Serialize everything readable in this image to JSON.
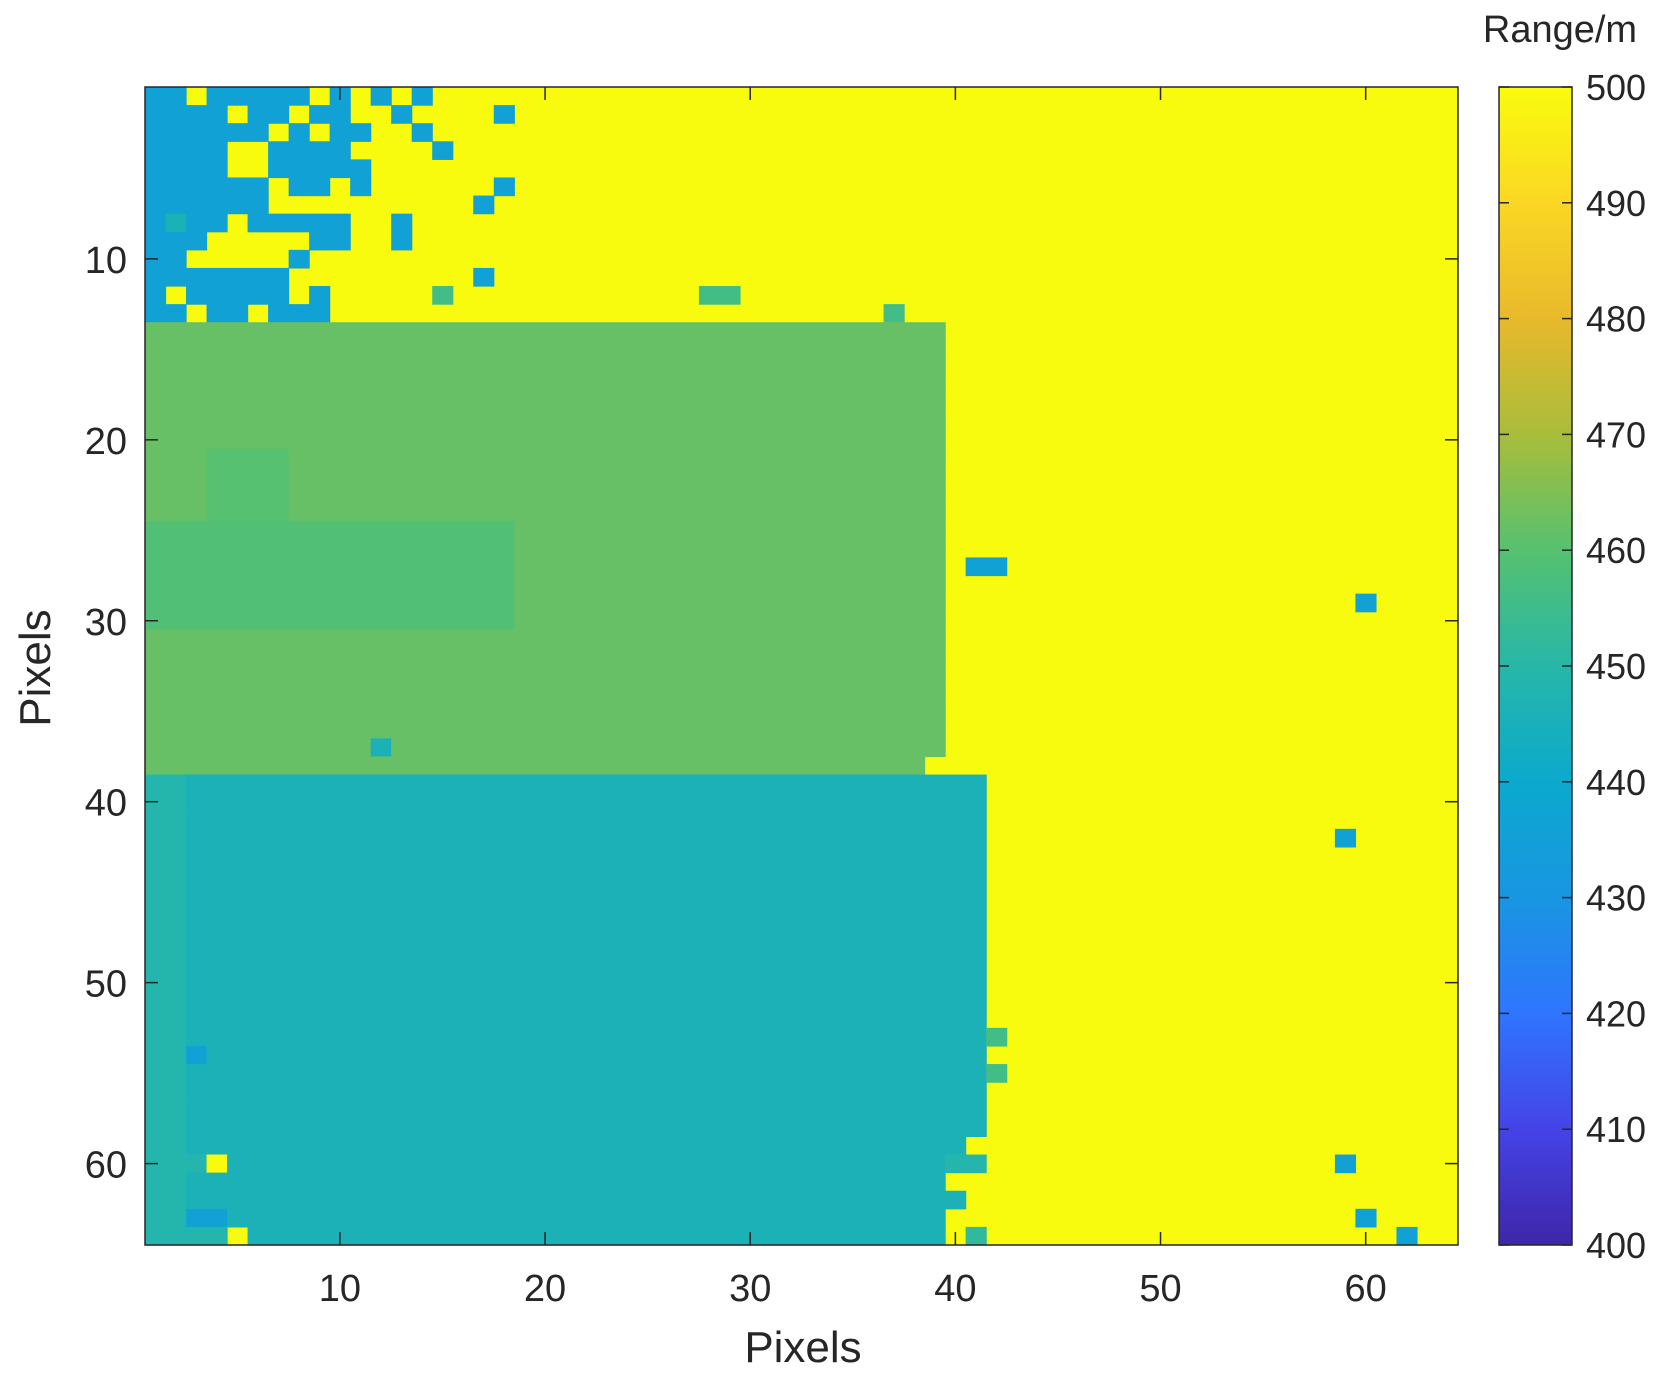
{
  "chart_data": {
    "type": "heatmap",
    "title": "",
    "xlabel": "Pixels",
    "ylabel": "Pixels",
    "colorbar_label": "Range/m",
    "grid_size": [
      64,
      64
    ],
    "xlim": [
      0.5,
      64.5
    ],
    "ylim": [
      0.5,
      64.5
    ],
    "y_axis_direction": "reversed",
    "x_ticks": [
      10,
      20,
      30,
      40,
      50,
      60
    ],
    "y_ticks": [
      10,
      20,
      30,
      40,
      50,
      60
    ],
    "colorbar": {
      "range": [
        400,
        500
      ],
      "ticks": [
        400,
        410,
        420,
        430,
        440,
        450,
        460,
        470,
        480,
        490,
        500
      ],
      "colormap": "parula",
      "colormap_stops": [
        "#3e26a8",
        "#4543e7",
        "#2f75fe",
        "#1996e2",
        "#0ba9cd",
        "#27b7a8",
        "#56c170",
        "#a9bd3b",
        "#e8b92c",
        "#fbd724",
        "#f9fb0e"
      ]
    },
    "encoding": "rows listed top (row 1) to bottom (row 64); runs of [start_col, end_col, range_m]; cells not covered by a run are 500",
    "default_value": 500,
    "rows": [
      [
        [
          1,
          2,
          436
        ],
        [
          4,
          8,
          436
        ],
        [
          10,
          10,
          436
        ],
        [
          12,
          12,
          436
        ],
        [
          14,
          14,
          436
        ]
      ],
      [
        [
          1,
          4,
          436
        ],
        [
          6,
          6,
          436
        ],
        [
          7,
          7,
          436
        ],
        [
          9,
          9,
          436
        ],
        [
          10,
          10,
          436
        ],
        [
          13,
          13,
          436
        ],
        [
          18,
          18,
          436
        ]
      ],
      [
        [
          1,
          6,
          436
        ],
        [
          8,
          8,
          436
        ],
        [
          10,
          11,
          436
        ],
        [
          14,
          14,
          436
        ]
      ],
      [
        [
          1,
          2,
          436
        ],
        [
          3,
          4,
          436
        ],
        [
          7,
          9,
          436
        ],
        [
          10,
          10,
          436
        ],
        [
          15,
          15,
          436
        ]
      ],
      [
        [
          1,
          2,
          436
        ],
        [
          3,
          4,
          436
        ],
        [
          7,
          8,
          436
        ],
        [
          9,
          9,
          436
        ],
        [
          10,
          11,
          436
        ]
      ],
      [
        [
          1,
          2,
          436
        ],
        [
          3,
          6,
          436
        ],
        [
          8,
          9,
          436
        ],
        [
          11,
          11,
          436
        ],
        [
          18,
          18,
          436
        ]
      ],
      [
        [
          1,
          6,
          436
        ],
        [
          17,
          17,
          436
        ]
      ],
      [
        [
          1,
          1,
          436
        ],
        [
          2,
          2,
          446
        ],
        [
          3,
          4,
          436
        ],
        [
          6,
          8,
          436
        ],
        [
          9,
          9,
          436
        ],
        [
          10,
          10,
          436
        ],
        [
          13,
          13,
          436
        ]
      ],
      [
        [
          1,
          3,
          436
        ],
        [
          9,
          10,
          436
        ],
        [
          13,
          13,
          436
        ]
      ],
      [
        [
          1,
          2,
          436
        ],
        [
          8,
          8,
          436
        ]
      ],
      [
        [
          1,
          1,
          436
        ],
        [
          2,
          7,
          436
        ],
        [
          17,
          17,
          436
        ]
      ],
      [
        [
          1,
          1,
          436
        ],
        [
          3,
          7,
          436
        ],
        [
          9,
          9,
          436
        ],
        [
          15,
          15,
          456
        ],
        [
          28,
          29,
          456
        ]
      ],
      [
        [
          1,
          2,
          436
        ],
        [
          4,
          5,
          436
        ],
        [
          7,
          7,
          436
        ],
        [
          8,
          9,
          436
        ],
        [
          37,
          37,
          456
        ]
      ],
      [
        [
          1,
          39,
          462
        ]
      ],
      [
        [
          1,
          39,
          462
        ]
      ],
      [
        [
          1,
          39,
          462
        ]
      ],
      [
        [
          1,
          39,
          462
        ]
      ],
      [
        [
          1,
          39,
          462
        ]
      ],
      [
        [
          1,
          39,
          462
        ]
      ],
      [
        [
          1,
          39,
          462
        ]
      ],
      [
        [
          1,
          3,
          462
        ],
        [
          4,
          7,
          460
        ],
        [
          8,
          39,
          462
        ]
      ],
      [
        [
          1,
          3,
          462
        ],
        [
          4,
          7,
          460
        ],
        [
          8,
          39,
          462
        ]
      ],
      [
        [
          1,
          3,
          462
        ],
        [
          4,
          7,
          460
        ],
        [
          8,
          39,
          462
        ]
      ],
      [
        [
          1,
          3,
          462
        ],
        [
          4,
          7,
          460
        ],
        [
          8,
          39,
          462
        ]
      ],
      [
        [
          1,
          18,
          459
        ],
        [
          19,
          39,
          462
        ]
      ],
      [
        [
          1,
          18,
          459
        ],
        [
          19,
          39,
          462
        ]
      ],
      [
        [
          1,
          18,
          459
        ],
        [
          19,
          39,
          462
        ],
        [
          41,
          42,
          436
        ]
      ],
      [
        [
          1,
          18,
          459
        ],
        [
          19,
          39,
          462
        ]
      ],
      [
        [
          1,
          18,
          459
        ],
        [
          19,
          39,
          462
        ],
        [
          60,
          60,
          436
        ]
      ],
      [
        [
          1,
          18,
          459
        ],
        [
          19,
          39,
          462
        ]
      ],
      [
        [
          1,
          39,
          462
        ]
      ],
      [
        [
          1,
          39,
          462
        ]
      ],
      [
        [
          1,
          39,
          462
        ]
      ],
      [
        [
          1,
          39,
          462
        ]
      ],
      [
        [
          1,
          39,
          462
        ]
      ],
      [
        [
          1,
          39,
          462
        ]
      ],
      [
        [
          1,
          11,
          462
        ],
        [
          12,
          12,
          446
        ],
        [
          13,
          39,
          462
        ]
      ],
      [
        [
          1,
          38,
          462
        ]
      ],
      [
        [
          1,
          2,
          449
        ],
        [
          3,
          41,
          446
        ]
      ],
      [
        [
          1,
          2,
          449
        ],
        [
          3,
          41,
          446
        ]
      ],
      [
        [
          1,
          2,
          449
        ],
        [
          3,
          41,
          446
        ]
      ],
      [
        [
          1,
          2,
          449
        ],
        [
          3,
          41,
          446
        ],
        [
          59,
          59,
          436
        ]
      ],
      [
        [
          1,
          2,
          449
        ],
        [
          3,
          41,
          446
        ]
      ],
      [
        [
          1,
          2,
          449
        ],
        [
          3,
          41,
          446
        ]
      ],
      [
        [
          1,
          2,
          449
        ],
        [
          3,
          41,
          446
        ]
      ],
      [
        [
          1,
          2,
          449
        ],
        [
          3,
          41,
          446
        ]
      ],
      [
        [
          1,
          2,
          449
        ],
        [
          3,
          41,
          446
        ]
      ],
      [
        [
          1,
          2,
          449
        ],
        [
          3,
          41,
          446
        ]
      ],
      [
        [
          1,
          2,
          449
        ],
        [
          3,
          41,
          446
        ]
      ],
      [
        [
          1,
          2,
          449
        ],
        [
          3,
          41,
          446
        ]
      ],
      [
        [
          1,
          2,
          449
        ],
        [
          3,
          41,
          446
        ]
      ],
      [
        [
          1,
          2,
          449
        ],
        [
          3,
          41,
          446
        ]
      ],
      [
        [
          1,
          2,
          449
        ],
        [
          3,
          41,
          446
        ],
        [
          42,
          42,
          456
        ]
      ],
      [
        [
          1,
          2,
          449
        ],
        [
          3,
          3,
          436
        ],
        [
          4,
          41,
          446
        ]
      ],
      [
        [
          1,
          2,
          449
        ],
        [
          3,
          41,
          446
        ],
        [
          42,
          42,
          456
        ]
      ],
      [
        [
          1,
          2,
          449
        ],
        [
          3,
          41,
          446
        ]
      ],
      [
        [
          1,
          2,
          449
        ],
        [
          3,
          41,
          446
        ]
      ],
      [
        [
          1,
          2,
          449
        ],
        [
          3,
          41,
          446
        ]
      ],
      [
        [
          1,
          2,
          449
        ],
        [
          3,
          40,
          446
        ]
      ],
      [
        [
          1,
          2,
          449
        ],
        [
          3,
          3,
          449
        ],
        [
          4,
          4,
          500
        ],
        [
          5,
          39,
          446
        ],
        [
          40,
          41,
          449
        ],
        [
          59,
          59,
          436
        ]
      ],
      [
        [
          1,
          2,
          449
        ],
        [
          3,
          39,
          446
        ]
      ],
      [
        [
          1,
          2,
          449
        ],
        [
          3,
          39,
          446
        ],
        [
          40,
          40,
          446
        ]
      ],
      [
        [
          1,
          2,
          449
        ],
        [
          3,
          4,
          436
        ],
        [
          5,
          39,
          446
        ],
        [
          60,
          60,
          436
        ]
      ],
      [
        [
          1,
          4,
          449
        ],
        [
          6,
          39,
          446
        ],
        [
          41,
          41,
          452
        ],
        [
          62,
          62,
          436
        ]
      ]
    ]
  }
}
